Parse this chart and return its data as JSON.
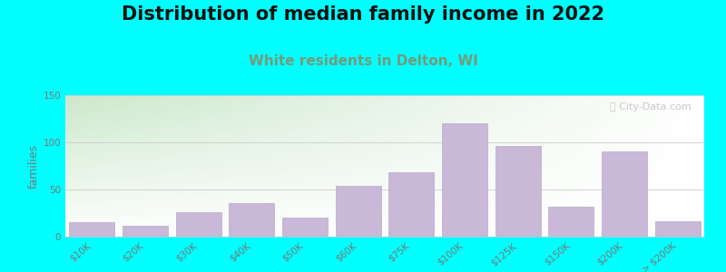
{
  "title": "Distribution of median family income in 2022",
  "subtitle": "White residents in Delton, WI",
  "ylabel": "families",
  "categories": [
    "$10K",
    "$20K",
    "$30K",
    "$40K",
    "$50K",
    "$60K",
    "$75K",
    "$100K",
    "$125K",
    "$150K",
    "$200K",
    "> $200K"
  ],
  "values": [
    15,
    12,
    26,
    36,
    20,
    54,
    68,
    120,
    96,
    32,
    90,
    16
  ],
  "bar_color": "#c9b8d8",
  "bar_edgecolor": "#b8a8cc",
  "ylim": [
    0,
    150
  ],
  "yticks": [
    0,
    50,
    100,
    150
  ],
  "background_color": "#00ffff",
  "plot_bg_left": "#ddeedd",
  "plot_bg_right": "#ffffff",
  "title_fontsize": 15,
  "subtitle_fontsize": 11,
  "subtitle_color": "#779977",
  "ylabel_fontsize": 9,
  "watermark_text": "ⓘ City-Data.com",
  "grid_color": "#cccccc",
  "tick_label_color": "#777777",
  "tick_label_fontsize": 7.5
}
